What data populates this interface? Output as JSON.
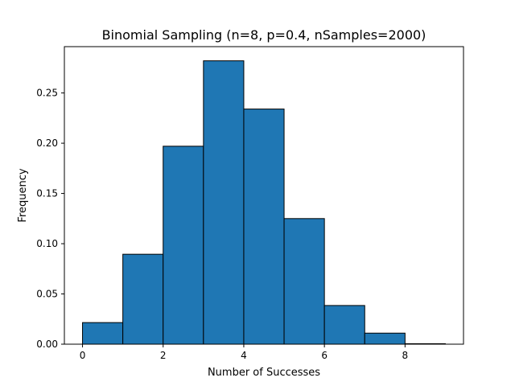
{
  "chart_data": {
    "type": "bar",
    "title": "Binomial Sampling (n=8, p=0.4, nSamples=2000)",
    "xlabel": "Number of Successes",
    "ylabel": "Frequency",
    "bins": [
      {
        "x0": 0,
        "x1": 1,
        "value": 0.0215
      },
      {
        "x0": 1,
        "x1": 2,
        "value": 0.0895
      },
      {
        "x0": 2,
        "x1": 3,
        "value": 0.197
      },
      {
        "x0": 3,
        "x1": 4,
        "value": 0.282
      },
      {
        "x0": 4,
        "x1": 5,
        "value": 0.234
      },
      {
        "x0": 5,
        "x1": 6,
        "value": 0.125
      },
      {
        "x0": 6,
        "x1": 7,
        "value": 0.0385
      },
      {
        "x0": 7,
        "x1": 8,
        "value": 0.011
      },
      {
        "x0": 8,
        "x1": 9,
        "value": 0.0005
      }
    ],
    "xlim": [
      -0.45,
      9.45
    ],
    "ylim": [
      0,
      0.2961
    ],
    "xticks": [
      0,
      2,
      4,
      6,
      8
    ],
    "xtick_labels": [
      "0",
      "2",
      "4",
      "6",
      "8"
    ],
    "yticks": [
      0,
      0.05,
      0.1,
      0.15,
      0.2,
      0.25
    ],
    "ytick_labels": [
      "0.00",
      "0.05",
      "0.10",
      "0.15",
      "0.20",
      "0.25"
    ],
    "grid": false,
    "bar_color": "#1f77b4",
    "edge_color": "#000000"
  }
}
